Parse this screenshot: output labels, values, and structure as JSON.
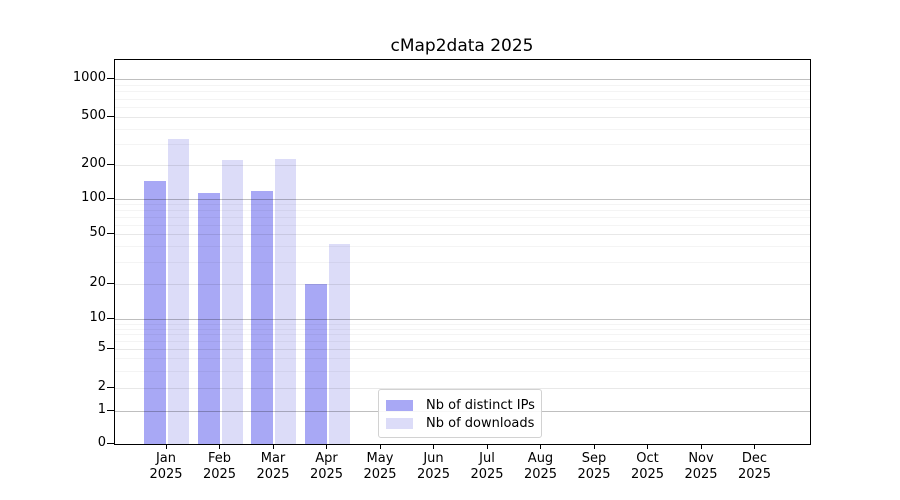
{
  "chart_data": {
    "type": "bar",
    "title": "cMap2data 2025",
    "x_categories": [
      {
        "month": "Jan",
        "year": "2025"
      },
      {
        "month": "Feb",
        "year": "2025"
      },
      {
        "month": "Mar",
        "year": "2025"
      },
      {
        "month": "Apr",
        "year": "2025"
      },
      {
        "month": "May",
        "year": "2025"
      },
      {
        "month": "Jun",
        "year": "2025"
      },
      {
        "month": "Jul",
        "year": "2025"
      },
      {
        "month": "Aug",
        "year": "2025"
      },
      {
        "month": "Sep",
        "year": "2025"
      },
      {
        "month": "Oct",
        "year": "2025"
      },
      {
        "month": "Nov",
        "year": "2025"
      },
      {
        "month": "Dec",
        "year": "2025"
      }
    ],
    "series": [
      {
        "name": "Nb of distinct IPs",
        "color": "#a8a8f5",
        "values": [
          145,
          114,
          118,
          20,
          null,
          null,
          null,
          null,
          null,
          null,
          null,
          null
        ]
      },
      {
        "name": "Nb of downloads",
        "color": "#dcdcf8",
        "values": [
          330,
          220,
          225,
          42,
          null,
          null,
          null,
          null,
          null,
          null,
          null,
          null
        ]
      }
    ],
    "y_axis": {
      "scale": "symlog",
      "ticks": [
        0,
        1,
        2,
        5,
        10,
        20,
        50,
        100,
        200,
        500,
        1000
      ],
      "minor_gridlines": [
        3,
        4,
        6,
        7,
        8,
        9,
        30,
        40,
        60,
        70,
        80,
        90,
        300,
        400,
        600,
        700,
        800,
        900
      ],
      "strong_gridlines": [
        1,
        10,
        100,
        1000
      ]
    },
    "grid": "on",
    "legend": {
      "items": [
        "Nb of distinct IPs",
        "Nb of downloads"
      ],
      "position": "bottom-center"
    }
  }
}
